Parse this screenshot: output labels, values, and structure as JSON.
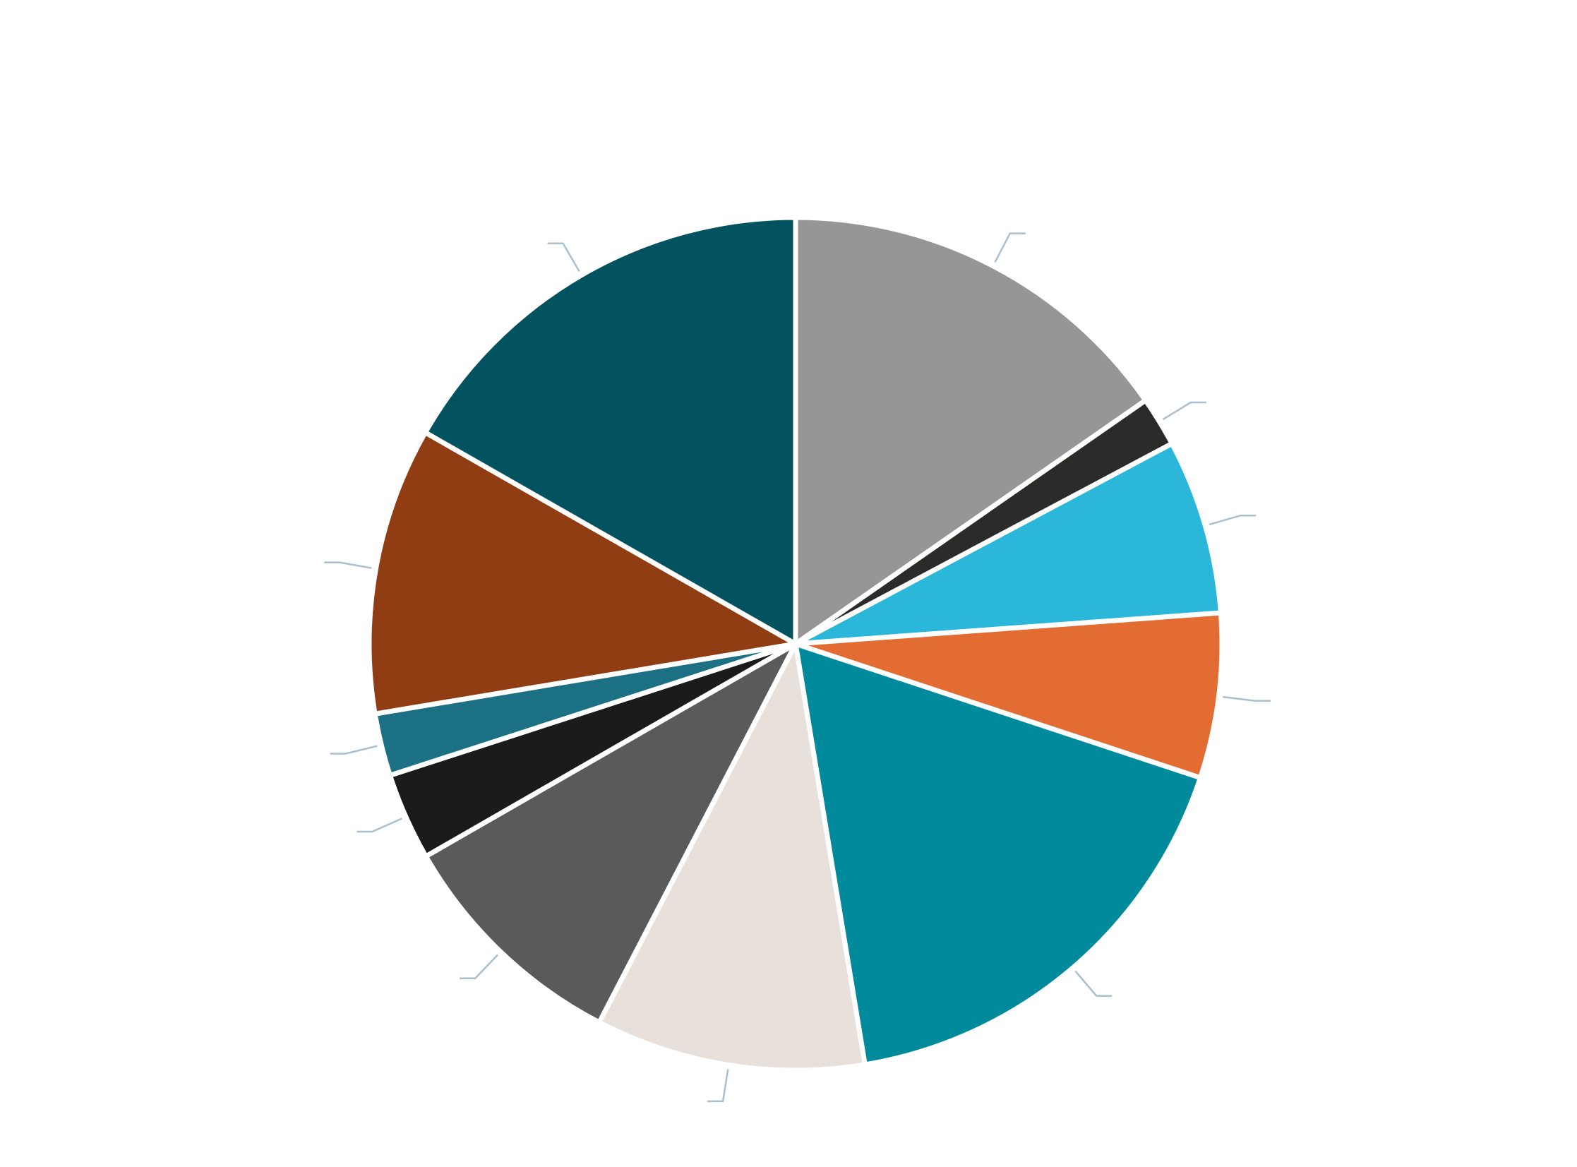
{
  "chart_data": {
    "type": "pie",
    "title": "",
    "legend": "none",
    "slices": [
      {
        "value": 16.2,
        "color": "#969696",
        "label": ""
      },
      {
        "value": 2.0,
        "color": "#2b2b29",
        "label": ""
      },
      {
        "value": 7.0,
        "color": "#2ab7da",
        "label": ""
      },
      {
        "value": 6.6,
        "color": "#e36c32",
        "label": ""
      },
      {
        "value": 18.3,
        "color": "#01899c",
        "label": ""
      },
      {
        "value": 10.8,
        "color": "#e8e0da",
        "label": ""
      },
      {
        "value": 9.6,
        "color": "#5a5a5a",
        "label": ""
      },
      {
        "value": 3.5,
        "color": "#1b1b1b",
        "label": ""
      },
      {
        "value": 2.5,
        "color": "#1b7083",
        "label": ""
      },
      {
        "value": 11.5,
        "color": "#913d14",
        "label": ""
      },
      {
        "value": 17.7,
        "color": "#02525f",
        "label": ""
      }
    ]
  }
}
